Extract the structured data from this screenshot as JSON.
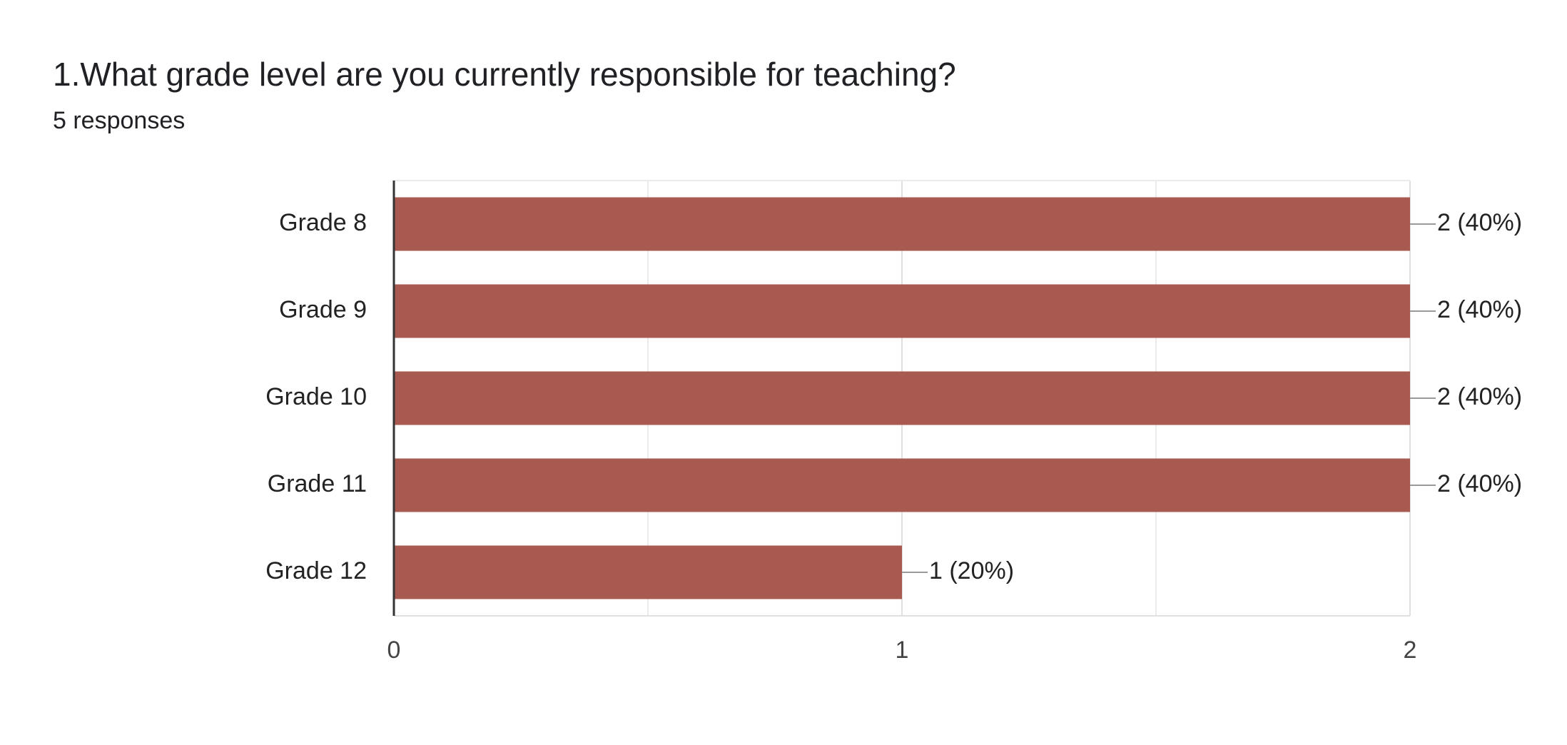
{
  "question": {
    "title": "1.What grade level are you currently responsible for teaching?",
    "responses": "5 responses"
  },
  "colors": {
    "bar": "#a85a50",
    "grid": "#ebebeb",
    "axis": "#333333"
  },
  "chart_data": {
    "type": "bar",
    "orientation": "horizontal",
    "categories": [
      "Grade 8",
      "Grade 9",
      "Grade 10",
      "Grade 11",
      "Grade 12"
    ],
    "values": [
      2,
      2,
      2,
      2,
      1
    ],
    "data_labels": [
      "2 (40%)",
      "2 (40%)",
      "2 (40%)",
      "2 (40%)",
      "1 (20%)"
    ],
    "xlim": [
      0,
      2
    ],
    "xticks": [
      0,
      1,
      2
    ],
    "xtick_labels": [
      "0",
      "1",
      "2"
    ],
    "minor_grid": [
      0.5,
      1.5
    ],
    "grid": true
  }
}
